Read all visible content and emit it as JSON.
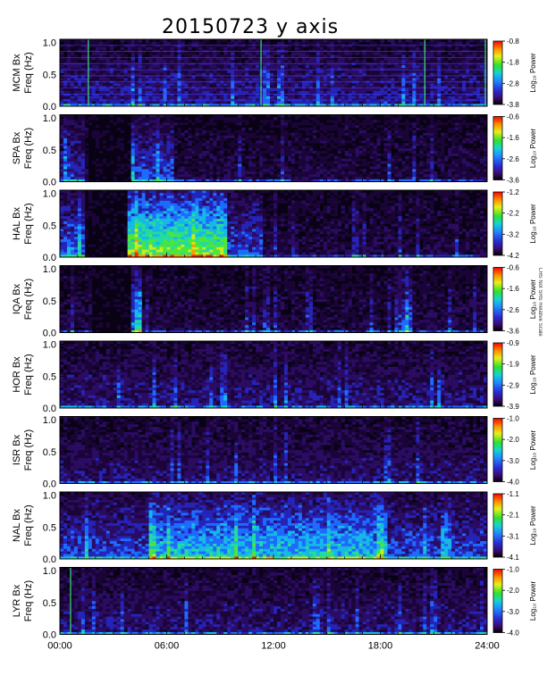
{
  "chart_data": {
    "type": "heatmap",
    "title": "20150723 y axis",
    "x_tick_labels": [
      "00:00",
      "06:00",
      "12:00",
      "18:00",
      "24:00"
    ],
    "x_range_hours": [
      0,
      24
    ],
    "y_range_hz": [
      0,
      1.05
    ],
    "y_tick_labels": [
      "0.0",
      "0.5",
      "1.0"
    ],
    "y_sublabel": "Freq (Hz)",
    "colorbar_label": "Log₁₀ Power",
    "side_note": "LHS Not SHS Relative Scale",
    "panels": [
      {
        "station": "MCM Bx",
        "cbar_ticks": [
          "-0.8",
          "-1.8",
          "-2.8",
          "-3.8"
        ],
        "cbar_range": [
          -3.8,
          -0.8
        ],
        "bright": [
          {
            "start": 0,
            "end": 24,
            "level": 0.25
          }
        ],
        "vlines": [
          1.6,
          11.3,
          20.5,
          23.9
        ],
        "harmonics": true
      },
      {
        "station": "SPA Bx",
        "cbar_ticks": [
          "-0.6",
          "-1.6",
          "-2.6",
          "-3.6"
        ],
        "cbar_range": [
          -3.6,
          -0.6
        ],
        "dark": [
          {
            "start": 1.6,
            "end": 4.1
          }
        ],
        "bright": [
          {
            "start": 4.1,
            "end": 6.5,
            "level": 0.35
          },
          {
            "start": 0,
            "end": 1.5,
            "level": 0.3
          }
        ]
      },
      {
        "station": "HAL Bx",
        "cbar_ticks": [
          "-1.2",
          "-2.2",
          "-3.2",
          "-4.2"
        ],
        "cbar_range": [
          -4.2,
          -1.2
        ],
        "dark": [
          {
            "start": 1.5,
            "end": 3.8
          }
        ],
        "bright": [
          {
            "start": 3.8,
            "end": 9.4,
            "level": 0.75
          },
          {
            "start": 0,
            "end": 1.5,
            "level": 0.4
          },
          {
            "start": 9.4,
            "end": 11.5,
            "level": 0.35
          }
        ]
      },
      {
        "station": "IQA Bx",
        "cbar_ticks": [
          "-0.6",
          "-1.6",
          "-2.6",
          "-3.6"
        ],
        "cbar_range": [
          -3.6,
          -0.6
        ],
        "dark": [
          {
            "start": 1.8,
            "end": 4.1
          }
        ],
        "bright": [
          {
            "start": 4.1,
            "end": 4.6,
            "level": 0.4
          },
          {
            "start": 18.8,
            "end": 19.8,
            "level": 0.35
          }
        ]
      },
      {
        "station": "HOR Bx",
        "cbar_ticks": [
          "-0.9",
          "-1.9",
          "-2.9",
          "-3.9"
        ],
        "cbar_range": [
          -3.9,
          -0.9
        ],
        "bright": [
          {
            "start": 0,
            "end": 24,
            "level": 0.22
          }
        ]
      },
      {
        "station": "ISR Bx",
        "cbar_ticks": [
          "-1.0",
          "-2.0",
          "-3.0",
          "-4.0"
        ],
        "cbar_range": [
          -4.0,
          -1.0
        ],
        "bright": [
          {
            "start": 0,
            "end": 24,
            "level": 0.2
          }
        ]
      },
      {
        "station": "NAL Bx",
        "cbar_ticks": [
          "-1.1",
          "-2.1",
          "-3.1",
          "-4.1"
        ],
        "cbar_range": [
          -4.1,
          -1.1
        ],
        "bright": [
          {
            "start": 5,
            "end": 18.5,
            "level": 0.55
          },
          {
            "start": 0,
            "end": 24,
            "level": 0.35
          }
        ]
      },
      {
        "station": "LYR Bx",
        "cbar_ticks": [
          "-1.0",
          "-2.0",
          "-3.0",
          "-4.0"
        ],
        "cbar_range": [
          -4.0,
          -1.0
        ],
        "bright": [
          {
            "start": 0,
            "end": 24,
            "level": 0.22
          }
        ],
        "vlines": [
          0.6
        ]
      }
    ]
  }
}
